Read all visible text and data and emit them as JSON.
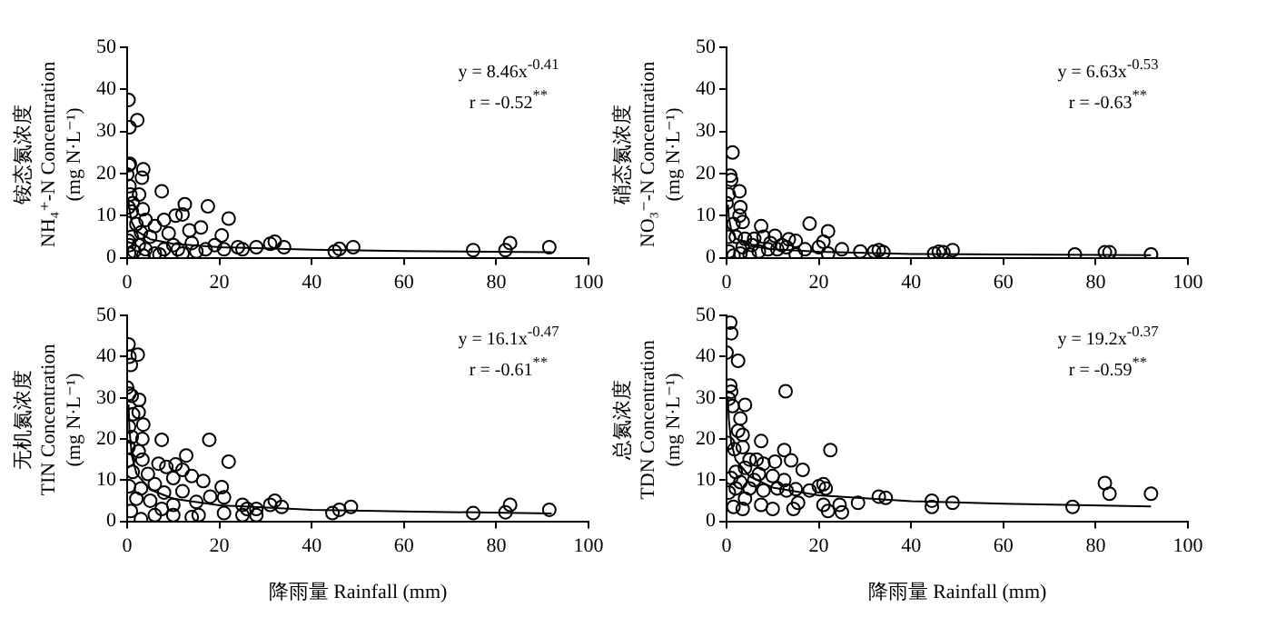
{
  "chart_data": [
    {
      "type": "scatter",
      "ylabel": "铵态氮浓度\nNH₄⁺-N Concentration\n(mg N·L⁻¹)",
      "annotations": [
        "y = 8.46x$^{-0.41}$",
        "r = -0.52$^{**}$"
      ],
      "xlim": [
        0,
        100
      ],
      "ylim": [
        0,
        50
      ],
      "xticks": [
        0,
        20,
        40,
        60,
        80,
        100
      ],
      "yticks": [
        0,
        10,
        20,
        30,
        40,
        50
      ],
      "grid": false,
      "legend": false,
      "marker": "circle",
      "series": [
        {
          "type": "scatter",
          "color": "#000000",
          "x": [
            0.3,
            0.5,
            2.2,
            0.4,
            0.6,
            0,
            3.5,
            3.2,
            0.5,
            0.7,
            2.6,
            1.2,
            0.3,
            3.4,
            1,
            7.5,
            12.5,
            17.5,
            22,
            10.5,
            12,
            8,
            4,
            2,
            6,
            16,
            20.5,
            13.5,
            9,
            5,
            3,
            1,
            0.3,
            0.5,
            2.5,
            4,
            6,
            8,
            10,
            11,
            14,
            15,
            17,
            19,
            21,
            24,
            25,
            28,
            31,
            32,
            34,
            45,
            46,
            49,
            75,
            82,
            83,
            91.5,
            0.4,
            1.5,
            3.5,
            7,
            12
          ],
          "values": [
            37.5,
            31,
            32.7,
            22,
            22.3,
            19.8,
            21,
            19,
            17,
            15,
            15,
            13,
            12,
            11.5,
            11,
            15.8,
            12.7,
            12.2,
            9.3,
            10,
            10.3,
            9,
            9,
            8,
            7.5,
            7.2,
            5.3,
            6.5,
            5.8,
            5,
            6,
            5,
            4,
            3,
            3,
            2,
            1,
            2,
            3,
            2,
            3.5,
            1.5,
            2,
            3,
            2,
            2.5,
            2,
            2.5,
            3.3,
            3.8,
            2.5,
            1.5,
            2.1,
            2.5,
            1.8,
            1.8,
            3.5,
            2.5,
            1,
            1.5,
            0.5,
            0.8,
            1
          ]
        },
        {
          "type": "line",
          "marker": "none",
          "color": "#000000",
          "x": [
            0.3,
            0.5,
            1,
            2,
            5,
            10,
            20,
            40,
            60,
            92
          ],
          "values": [
            13.9,
            11.3,
            8.5,
            6.4,
            4.4,
            3.3,
            2.5,
            1.9,
            1.6,
            1.3
          ]
        }
      ]
    },
    {
      "type": "scatter",
      "ylabel": "硝态氮浓度\nNO₃⁻-N Concentration\n(mg N·L⁻¹)",
      "annotations": [
        "y = 6.63x$^{-0.53}$",
        "r = -0.63$^{**}$"
      ],
      "xlim": [
        0,
        100
      ],
      "ylim": [
        0,
        50
      ],
      "xticks": [
        0,
        20,
        40,
        60,
        80,
        100
      ],
      "yticks": [
        0,
        10,
        20,
        30,
        40,
        50
      ],
      "grid": false,
      "legend": false,
      "marker": "circle",
      "series": [
        {
          "type": "scatter",
          "color": "#000000",
          "x": [
            1.3,
            0.8,
            1,
            0.5,
            2.8,
            0,
            3,
            2.8,
            3.5,
            1.5,
            7.5,
            18,
            22,
            0.5,
            2,
            4,
            6,
            8,
            10.5,
            13.5,
            15,
            20,
            21,
            25,
            29,
            32,
            33,
            34,
            45,
            46,
            47,
            49,
            75.5,
            82,
            83,
            92,
            0.5,
            1.5,
            3,
            5,
            7,
            9,
            11,
            13,
            15,
            17,
            22,
            12,
            9.5,
            5.5,
            3.5
          ],
          "values": [
            25,
            19.5,
            18.5,
            15,
            15.8,
            13,
            12,
            10,
            8.5,
            8,
            7.5,
            8.1,
            6.3,
            5,
            5,
            4.5,
            4.5,
            5,
            5.2,
            4.4,
            4,
            2.5,
            3.8,
            2,
            1.5,
            1.5,
            1.8,
            1.3,
            1,
            1.4,
            1.3,
            1.8,
            0.8,
            1.3,
            1.3,
            0.8,
            1.5,
            0.5,
            1,
            0.8,
            1.5,
            2,
            2,
            2.5,
            0.8,
            2,
            1,
            3,
            3.5,
            3,
            2.5
          ]
        },
        {
          "type": "line",
          "marker": "none",
          "color": "#000000",
          "x": [
            0.3,
            0.5,
            1,
            2,
            5,
            10,
            20,
            40,
            60,
            92
          ],
          "values": [
            12.6,
            9.6,
            6.6,
            4.6,
            2.8,
            2,
            1.4,
            0.9,
            0.8,
            0.6
          ]
        }
      ]
    },
    {
      "type": "scatter",
      "xlabel": "降雨量 Rainfall (mm)",
      "ylabel": "无机氮浓度\nTIN Concentration\n(mg N·L⁻¹)",
      "annotations": [
        "y = 16.1x$^{-0.47}$",
        "r = -0.61$^{**}$"
      ],
      "xlim": [
        0,
        100
      ],
      "ylim": [
        0,
        50
      ],
      "xticks": [
        0,
        20,
        40,
        60,
        80,
        100
      ],
      "yticks": [
        0,
        10,
        20,
        30,
        40,
        50
      ],
      "grid": false,
      "legend": false,
      "marker": "circle",
      "series": [
        {
          "type": "scatter",
          "color": "#000000",
          "x": [
            0.3,
            0.5,
            2.3,
            0.8,
            0,
            0.5,
            1,
            2.6,
            2.5,
            1.3,
            3.5,
            0.4,
            1,
            3.3,
            7.5,
            17.8,
            0.3,
            2.5,
            3.3,
            0.2,
            22,
            12.8,
            6.8,
            10.5,
            8.5,
            12,
            1.2,
            4.5,
            14,
            16.5,
            20.5,
            10,
            6,
            3,
            0.4,
            8,
            12,
            18,
            21,
            5,
            2,
            15,
            10,
            7.5,
            25,
            26,
            28,
            31,
            32,
            33.5,
            44.5,
            46,
            48.5,
            75,
            82,
            83,
            91.5,
            0.8,
            3,
            6,
            10,
            14,
            15.5,
            21,
            25,
            28
          ],
          "values": [
            43,
            40,
            40.5,
            38,
            32.5,
            31,
            30.5,
            29.5,
            26.5,
            26,
            23.5,
            23,
            20.5,
            20,
            19.8,
            19.8,
            18,
            17,
            15,
            14.8,
            14.5,
            16,
            14,
            13.8,
            13.2,
            12.5,
            12,
            11.5,
            11,
            9.8,
            8.3,
            10.5,
            9,
            8,
            8.5,
            7,
            7.3,
            6,
            5.8,
            5,
            5.5,
            4.7,
            4,
            3,
            4,
            3,
            3,
            4,
            5,
            3.5,
            2,
            2.8,
            3.5,
            2,
            2.2,
            4,
            2.8,
            2.5,
            0.5,
            1.5,
            1.5,
            1,
            1.5,
            2,
            1.5,
            1.5
          ]
        },
        {
          "type": "line",
          "marker": "none",
          "color": "#000000",
          "x": [
            0.3,
            0.5,
            1,
            2,
            5,
            10,
            20,
            40,
            60,
            92
          ],
          "values": [
            28.4,
            22.3,
            16.1,
            11.6,
            7.7,
            5.5,
            3.9,
            2.8,
            2.4,
            1.9
          ]
        }
      ]
    },
    {
      "type": "scatter",
      "xlabel": "降雨量 Rainfall (mm)",
      "ylabel": "总氮浓度\nTDN Concentration\n(mg N·L⁻¹)",
      "annotations": [
        "y = 19.2x$^{-0.37}$",
        "r = -0.59$^{**}$"
      ],
      "xlim": [
        0,
        100
      ],
      "ylim": [
        0,
        50
      ],
      "xticks": [
        0,
        20,
        40,
        60,
        80,
        100
      ],
      "yticks": [
        0,
        10,
        20,
        30,
        40,
        50
      ],
      "grid": false,
      "legend": false,
      "marker": "circle",
      "series": [
        {
          "type": "scatter",
          "color": "#000000",
          "x": [
            0.8,
            1,
            0,
            2.5,
            0.8,
            1,
            0.5,
            4,
            1.3,
            12.8,
            3,
            2.5,
            3.5,
            0.3,
            7.5,
            12.5,
            22.5,
            3.5,
            1.7,
            5,
            6.5,
            8,
            10.5,
            14,
            16.5,
            4,
            2,
            1,
            7,
            10,
            12.5,
            6,
            3,
            2,
            5,
            8,
            11,
            13,
            15,
            18,
            20,
            21,
            21.5,
            0.5,
            4,
            7.5,
            10,
            14.5,
            15.5,
            21,
            22,
            25,
            24.5,
            28.5,
            33,
            34.5,
            44.5,
            44.5,
            49,
            75,
            82,
            83,
            92,
            1.5,
            3.5
          ],
          "values": [
            48.3,
            45.7,
            41,
            39,
            33,
            31.5,
            29.8,
            28.3,
            28,
            31.6,
            25,
            22,
            21,
            19,
            19.5,
            17.3,
            17.3,
            18,
            17.5,
            15,
            15,
            14,
            14.5,
            14.8,
            12.5,
            13,
            12,
            10.5,
            11.5,
            11,
            10,
            10,
            9.5,
            8,
            8,
            7.5,
            8,
            7.5,
            7.8,
            7.5,
            8.5,
            9,
            8,
            7,
            5.5,
            4,
            3,
            3,
            4.5,
            4,
            2.5,
            2.2,
            4,
            4.5,
            6,
            5.7,
            3.5,
            5,
            4.5,
            3.5,
            9.3,
            6.7,
            6.7,
            3.5,
            3
          ]
        },
        {
          "type": "line",
          "marker": "none",
          "color": "#000000",
          "x": [
            0.3,
            0.5,
            1,
            2,
            5,
            10,
            20,
            40,
            60,
            92
          ],
          "values": [
            30,
            24.8,
            19.2,
            14.9,
            10.9,
            8.2,
            6.3,
            4.9,
            4.3,
            3.6
          ]
        }
      ]
    }
  ]
}
